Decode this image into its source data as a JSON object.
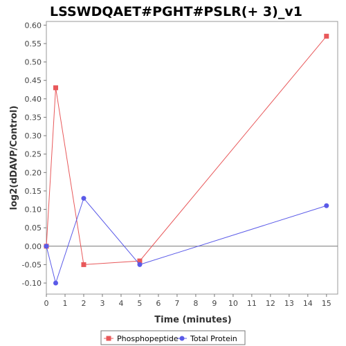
{
  "chart_data": {
    "type": "line",
    "title": "LSSWDQAET#PGHT#PSLR(+ 3)_v1",
    "xlabel": "Time (minutes)",
    "ylabel": "log2(dDAVP/Control)",
    "xlim": [
      0,
      15.6
    ],
    "ylim": [
      -0.13,
      0.61
    ],
    "xticks": [
      0,
      1,
      2,
      3,
      4,
      5,
      6,
      7,
      8,
      9,
      10,
      11,
      12,
      13,
      14,
      15
    ],
    "yticks": [
      -0.1,
      -0.05,
      0.0,
      0.05,
      0.1,
      0.15,
      0.2,
      0.25,
      0.3,
      0.35,
      0.4,
      0.45,
      0.5,
      0.55,
      0.6
    ],
    "ytick_labels": [
      "-0.10",
      "-0.05",
      "0.00",
      "0.05",
      "0.10",
      "0.15",
      "0.20",
      "0.25",
      "0.30",
      "0.35",
      "0.40",
      "0.45",
      "0.50",
      "0.55",
      "0.60"
    ],
    "zero_line": true,
    "grid": false,
    "legend_position": "bottom-center",
    "series": [
      {
        "name": "Phosphopeptide",
        "color": "#e8585a",
        "marker": "square",
        "x": [
          0,
          0.5,
          2,
          5,
          15
        ],
        "y": [
          0.0,
          0.43,
          -0.05,
          -0.04,
          0.57
        ]
      },
      {
        "name": "Total Protein",
        "color": "#5a5ae8",
        "marker": "circle",
        "x": [
          0,
          0.5,
          2,
          5,
          15
        ],
        "y": [
          0.0,
          -0.1,
          0.13,
          -0.05,
          0.11
        ]
      }
    ]
  }
}
